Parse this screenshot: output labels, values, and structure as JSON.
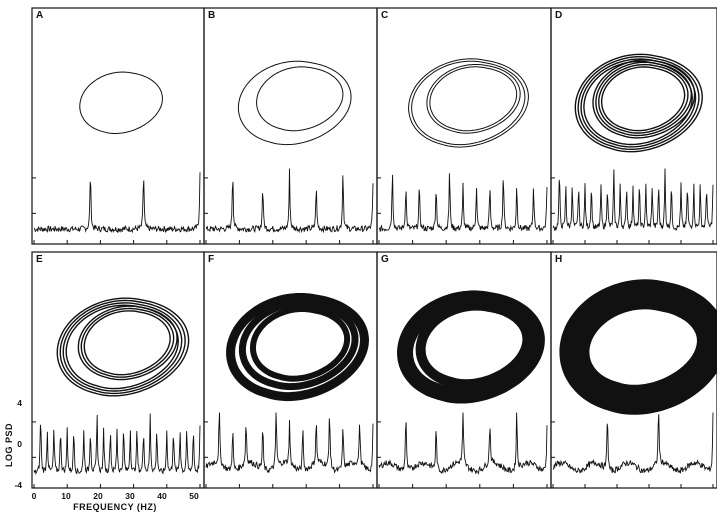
{
  "figure": {
    "panels": [
      {
        "letter": "A",
        "attractor": "single loop (period-1 limit cycle)",
        "spectrum_peaks_hz": [
          17,
          33,
          50
        ]
      },
      {
        "letter": "B",
        "attractor": "double loop (period-2)",
        "spectrum_peaks_hz": [
          8,
          17,
          25,
          33,
          41,
          50
        ]
      },
      {
        "letter": "C",
        "attractor": "quadruple loop (period-4)",
        "spectrum_peaks_hz": [
          4,
          8,
          12,
          17,
          21,
          25,
          29,
          33,
          37,
          41,
          46,
          50
        ]
      },
      {
        "letter": "D",
        "attractor": "period-8 loop",
        "spectrum_peaks_hz": [
          2,
          4,
          6,
          8,
          10,
          12,
          15,
          17,
          19,
          21,
          23,
          25,
          27,
          29,
          31,
          33,
          35,
          37,
          40,
          42,
          44,
          46,
          48,
          50
        ]
      },
      {
        "letter": "E",
        "attractor": "multi-loop (period-16)",
        "spectrum_peaks_hz": [
          2,
          4,
          6,
          8,
          10,
          12,
          15,
          17,
          19,
          21,
          23,
          25,
          27,
          29,
          31,
          33,
          35,
          37,
          40,
          42,
          44,
          46,
          48,
          50
        ]
      },
      {
        "letter": "F",
        "attractor": "banded chaotic",
        "spectrum_peaks_hz": [
          4,
          8,
          12,
          17,
          21,
          25,
          29,
          33,
          37,
          41,
          46,
          50
        ]
      },
      {
        "letter": "G",
        "attractor": "two-band chaotic",
        "spectrum_peaks_hz": [
          8,
          17,
          25,
          33,
          41,
          50
        ]
      },
      {
        "letter": "H",
        "attractor": "single-band chaotic",
        "spectrum_peaks_hz": [
          17,
          33,
          50
        ]
      }
    ],
    "y_axis": {
      "label": "LOG PSD",
      "ticks": [
        "4",
        "0",
        "-4"
      ],
      "range": [
        -4,
        4
      ]
    },
    "x_axis": {
      "label": "FREQUENCY (HZ)",
      "ticks": [
        "0",
        "10",
        "20",
        "30",
        "40",
        "50"
      ],
      "range": [
        0,
        50
      ]
    }
  }
}
